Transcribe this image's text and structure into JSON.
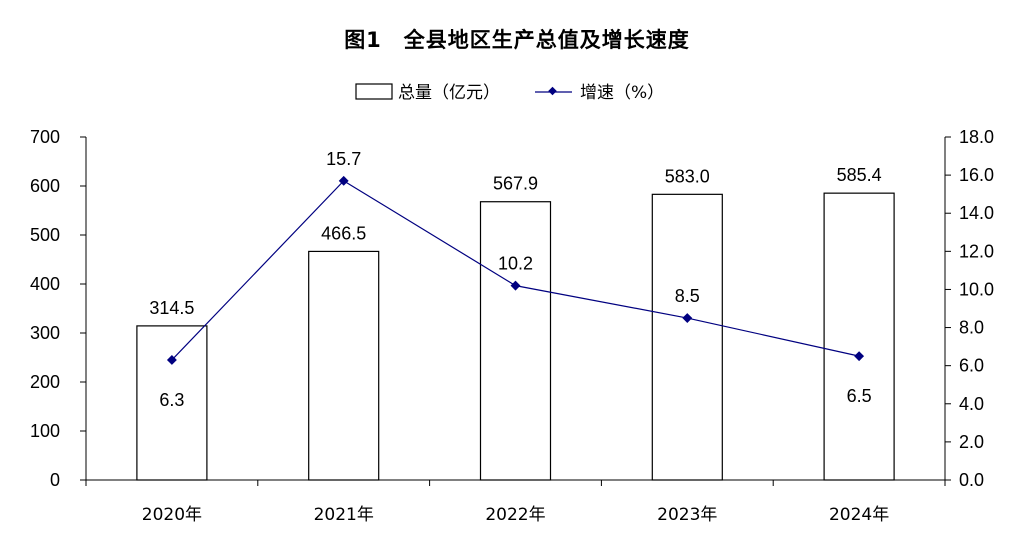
{
  "title": "图1　全县地区生产总值及增长速度",
  "legend": {
    "bar_label": "总量（亿元）",
    "line_label": "增速（%）"
  },
  "colors": {
    "bar_fill": "#ffffff",
    "bar_stroke": "#000000",
    "line": "#000080",
    "marker": "#000080",
    "axis": "#000000"
  },
  "chart_data": {
    "type": "bar",
    "title": "图1　全县地区生产总值及增长速度",
    "categories": [
      "2020年",
      "2021年",
      "2022年",
      "2023年",
      "2024年"
    ],
    "series": [
      {
        "name": "总量（亿元）",
        "type": "bar",
        "axis": "left",
        "values": [
          314.5,
          466.5,
          567.9,
          583.0,
          585.4
        ],
        "labels": [
          "314.5",
          "466.5",
          "567.9",
          "583.0",
          "585.4"
        ]
      },
      {
        "name": "增速（%）",
        "type": "line",
        "axis": "right",
        "values": [
          6.3,
          15.7,
          10.2,
          8.5,
          6.5
        ],
        "labels": [
          "6.3",
          "15.7",
          "10.2",
          "8.5",
          "6.5"
        ]
      }
    ],
    "y_left": {
      "min": 0,
      "max": 700,
      "step": 100,
      "ticks": [
        "0",
        "100",
        "200",
        "300",
        "400",
        "500",
        "600",
        "700"
      ]
    },
    "y_right": {
      "min": 0,
      "max": 18,
      "step": 2,
      "ticks": [
        "0.0",
        "2.0",
        "4.0",
        "6.0",
        "8.0",
        "10.0",
        "12.0",
        "14.0",
        "16.0",
        "18.0"
      ]
    },
    "legend_position": "top-center",
    "grid": false
  }
}
